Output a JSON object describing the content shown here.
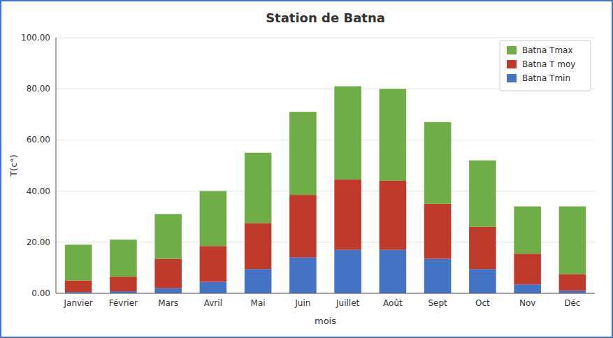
{
  "chart_data": {
    "type": "bar",
    "stacked": true,
    "title": "Station de Batna",
    "x_label": "mois",
    "y_label": "T(c°)",
    "categories": [
      "Janvier",
      "Février",
      "Mars",
      "Avril",
      "Mai",
      "Juin",
      "Juillet",
      "Août",
      "Sept",
      "Oct",
      "Nov",
      "Déc"
    ],
    "series": [
      {
        "name": "Batna Tmin",
        "color": "#4472C4",
        "values": [
          0.5,
          0.8,
          2.0,
          4.5,
          9.5,
          14.0,
          17.0,
          17.0,
          13.5,
          9.5,
          3.5,
          1.0
        ]
      },
      {
        "name": "Batna T moy",
        "color": "#C0392B",
        "values": [
          4.5,
          5.7,
          11.5,
          14.0,
          18.0,
          24.5,
          27.5,
          27.0,
          21.5,
          16.5,
          12.0,
          6.5
        ]
      },
      {
        "name": "Batna Tmax",
        "color": "#70AD47",
        "values": [
          14.0,
          14.5,
          17.5,
          21.5,
          27.5,
          32.5,
          36.5,
          36.0,
          32.0,
          26.0,
          18.5,
          26.5
        ]
      }
    ],
    "ylim": [
      0,
      100
    ],
    "yticks": [
      {
        "value": 0,
        "label": "0.00"
      },
      {
        "value": 20,
        "label": "20.00"
      },
      {
        "value": 40,
        "label": "40.00"
      },
      {
        "value": 60,
        "label": "60.00"
      },
      {
        "value": 80,
        "label": "80.00"
      },
      {
        "value": 100,
        "label": "100.00"
      }
    ],
    "grid": true,
    "legend": "upper right"
  }
}
